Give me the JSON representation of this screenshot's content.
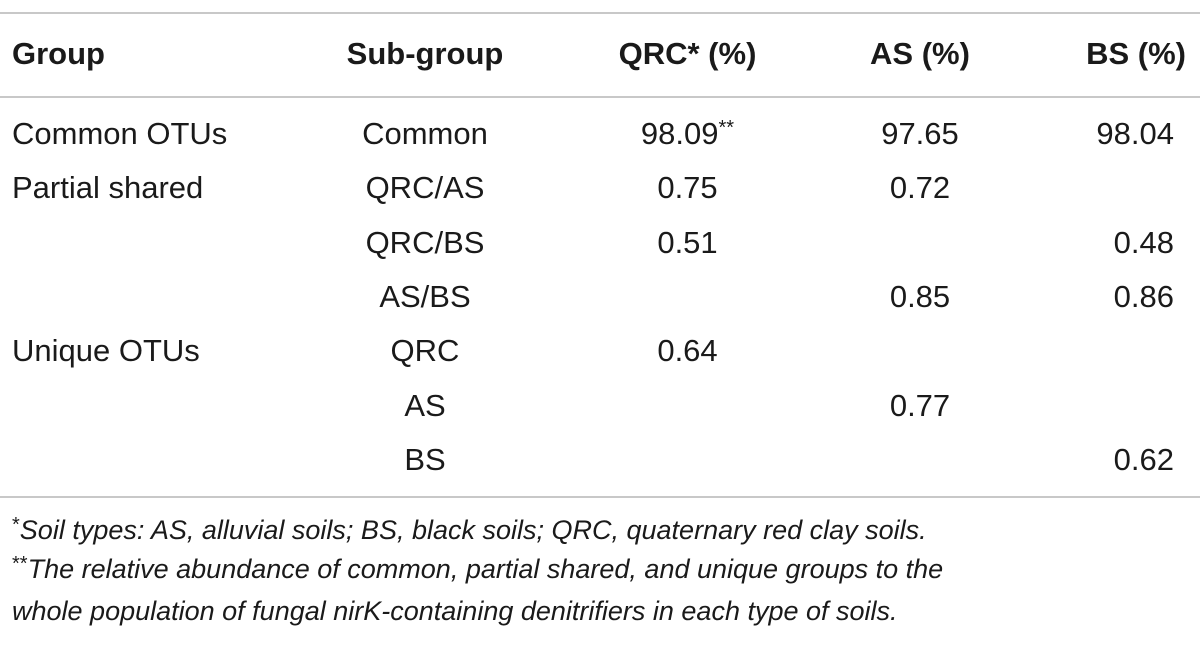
{
  "header": {
    "group": "Group",
    "subgroup": "Sub-group",
    "qrc": "QRC",
    "qrc_mark": "*",
    "qrc_unit": " (%)",
    "as": "AS (%)",
    "bs": "BS (%)"
  },
  "rows": [
    {
      "group": "Common OTUs",
      "subgroup": "Common",
      "qrc": "98.09",
      "qrc_mark": "**",
      "as": "97.65",
      "bs": "98.04"
    },
    {
      "group": "Partial shared",
      "subgroup": "QRC/AS",
      "qrc": "0.75",
      "qrc_mark": "",
      "as": "0.72",
      "bs": ""
    },
    {
      "group": "",
      "subgroup": "QRC/BS",
      "qrc": "0.51",
      "qrc_mark": "",
      "as": "",
      "bs": "0.48"
    },
    {
      "group": "",
      "subgroup": "AS/BS",
      "qrc": "",
      "qrc_mark": "",
      "as": "0.85",
      "bs": "0.86"
    },
    {
      "group": "Unique OTUs",
      "subgroup": "QRC",
      "qrc": "0.64",
      "qrc_mark": "",
      "as": "",
      "bs": ""
    },
    {
      "group": "",
      "subgroup": "AS",
      "qrc": "",
      "qrc_mark": "",
      "as": "0.77",
      "bs": ""
    },
    {
      "group": "",
      "subgroup": "BS",
      "qrc": "",
      "qrc_mark": "",
      "as": "",
      "bs": "0.62"
    }
  ],
  "footnotes": {
    "note1_symbol": "*",
    "note1_text": "Soil types: AS, alluvial soils; BS, black soils; QRC, quaternary red clay soils.",
    "note2_symbol": "**",
    "note2_line1": "The relative abundance of common, partial shared, and unique groups to the",
    "note2_line2": "whole population of fungal nirK-containing denitrifiers in each type of soils."
  }
}
